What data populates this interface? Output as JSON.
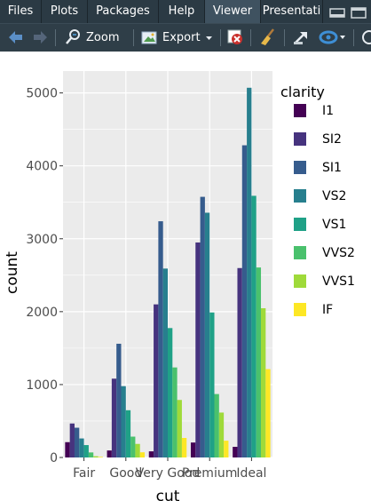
{
  "tabs": [
    {
      "label": "Files",
      "active": false
    },
    {
      "label": "Plots",
      "active": false
    },
    {
      "label": "Packages",
      "active": false
    },
    {
      "label": "Help",
      "active": false
    },
    {
      "label": "Viewer",
      "active": true
    },
    {
      "label": "Presentati",
      "active": false
    }
  ],
  "toolbar": {
    "zoom_label": "Zoom",
    "export_label": "Export",
    "icons": [
      "back-arrow-icon",
      "forward-arrow-icon",
      "zoom-icon",
      "export-icon",
      "dropdown-caret-icon",
      "remove-plot-icon",
      "broom-icon",
      "publish-icon",
      "refresh-icon"
    ]
  },
  "colors": {
    "I1": "#440154",
    "SI2": "#46337E",
    "SI1": "#365C8D",
    "VS2": "#277F8E",
    "VS1": "#1FA187",
    "VVS2": "#4AC16D",
    "VVS1": "#9FDA3A",
    "IF": "#FDE725",
    "panel_bg": "#EBEBEB",
    "grid": "#FFFFFF"
  },
  "chart_data": {
    "type": "bar",
    "position": "dodge",
    "categories": [
      "Fair",
      "Good",
      "Very Good",
      "Premium",
      "Ideal"
    ],
    "xlabel": "cut",
    "ylabel": "count",
    "ylim": [
      0,
      5300
    ],
    "yticks": [
      0,
      1000,
      2000,
      3000,
      4000,
      5000
    ],
    "grid": true,
    "legend_title": "clarity",
    "legend_position": "right",
    "series": [
      {
        "name": "I1",
        "values": [
          210,
          96,
          84,
          205,
          146
        ]
      },
      {
        "name": "SI2",
        "values": [
          466,
          1081,
          2100,
          2949,
          2598
        ]
      },
      {
        "name": "SI1",
        "values": [
          408,
          1560,
          3240,
          3575,
          4282
        ]
      },
      {
        "name": "VS2",
        "values": [
          261,
          978,
          2591,
          3357,
          5071
        ]
      },
      {
        "name": "VS1",
        "values": [
          170,
          648,
          1775,
          1989,
          3589
        ]
      },
      {
        "name": "VVS2",
        "values": [
          69,
          286,
          1235,
          870,
          2606
        ]
      },
      {
        "name": "VVS1",
        "values": [
          17,
          186,
          789,
          616,
          2047
        ]
      },
      {
        "name": "IF",
        "values": [
          9,
          71,
          268,
          230,
          1212
        ]
      }
    ]
  }
}
